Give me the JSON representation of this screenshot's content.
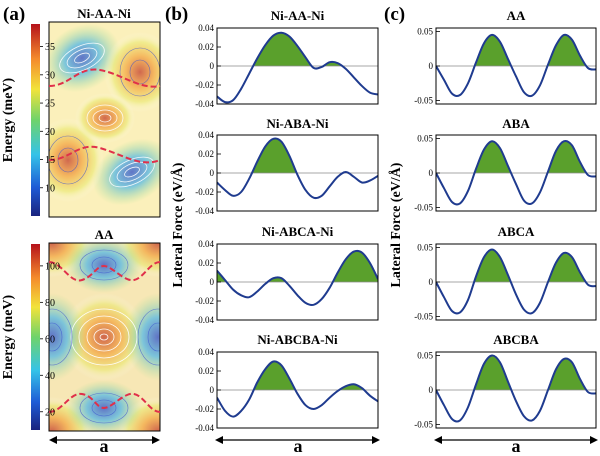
{
  "panels": {
    "a": "(a)",
    "b": "(b)",
    "c": "(c)"
  },
  "a_x_label": "a",
  "b_x_label": "a",
  "c_x_label": "a",
  "b_ylabel": "Lateral Force (eV/Å)",
  "c_ylabel": "Lateral Force (eV/Å)",
  "colors": {
    "line": "#1f3b8f",
    "fill": "#5aa02c",
    "mep": "#e0304a",
    "zero": "#8a8a8a"
  },
  "chart_data": [
    {
      "id": "a-top",
      "type": "heatmap",
      "title": "Ni-AA-Ni",
      "ylabel": "Energy (meV)",
      "ylim": [
        5,
        39
      ],
      "colorbar_ticks": [
        10,
        15,
        20,
        25,
        30,
        35
      ],
      "colormap": "jet"
    },
    {
      "id": "a-bottom",
      "type": "heatmap",
      "title": "AA",
      "ylabel": "Energy (meV)",
      "ylim": [
        10,
        112
      ],
      "colorbar_ticks": [
        20,
        40,
        60,
        80,
        100
      ],
      "colormap": "jet"
    },
    {
      "id": "b1",
      "type": "area",
      "title": "Ni-AA-Ni",
      "xlabel": "a",
      "ylabel": "Lateral Force (eV/Å)",
      "ylim": [
        -0.04,
        0.04
      ],
      "yticks": [
        "-0.04",
        "-0.02",
        "0",
        "0.02",
        "0.04"
      ],
      "x": [
        0,
        0.05,
        0.1,
        0.15,
        0.2,
        0.25,
        0.3,
        0.35,
        0.4,
        0.45,
        0.5,
        0.55,
        0.6,
        0.65,
        0.7,
        0.75,
        0.8,
        0.85,
        0.9,
        0.95,
        1
      ],
      "y": [
        -0.032,
        -0.038,
        -0.036,
        -0.024,
        -0.008,
        0.008,
        0.022,
        0.032,
        0.035,
        0.031,
        0.021,
        0.009,
        -0.002,
        -0.001,
        0.004,
        0.003,
        -0.003,
        -0.012,
        -0.021,
        -0.028,
        -0.03
      ]
    },
    {
      "id": "b2",
      "type": "area",
      "title": "Ni-ABA-Ni",
      "xlabel": "a",
      "ylabel": "Lateral Force (eV/Å)",
      "ylim": [
        -0.04,
        0.04
      ],
      "yticks": [
        "-0.04",
        "-0.02",
        "0",
        "0.02",
        "0.04"
      ],
      "x": [
        0,
        0.05,
        0.1,
        0.15,
        0.2,
        0.25,
        0.3,
        0.35,
        0.4,
        0.45,
        0.5,
        0.55,
        0.6,
        0.65,
        0.7,
        0.75,
        0.8,
        0.85,
        0.9,
        0.95,
        1
      ],
      "y": [
        -0.01,
        -0.018,
        -0.024,
        -0.02,
        -0.006,
        0.012,
        0.028,
        0.036,
        0.033,
        0.018,
        -0.002,
        -0.018,
        -0.026,
        -0.024,
        -0.014,
        -0.004,
        0.001,
        -0.004,
        -0.01,
        -0.008,
        -0.003
      ]
    },
    {
      "id": "b3",
      "type": "area",
      "title": "Ni-ABCA-Ni",
      "xlabel": "a",
      "ylabel": "Lateral Force (eV/Å)",
      "ylim": [
        -0.04,
        0.04
      ],
      "yticks": [
        "-0.04",
        "-0.02",
        "0",
        "0.02",
        "0.04"
      ],
      "x": [
        0,
        0.05,
        0.1,
        0.15,
        0.2,
        0.25,
        0.3,
        0.35,
        0.4,
        0.45,
        0.5,
        0.55,
        0.6,
        0.65,
        0.7,
        0.75,
        0.8,
        0.85,
        0.9,
        0.95,
        1
      ],
      "y": [
        0.012,
        0.002,
        -0.008,
        -0.014,
        -0.016,
        -0.01,
        -0.002,
        0.004,
        0.004,
        -0.004,
        -0.014,
        -0.022,
        -0.024,
        -0.018,
        -0.006,
        0.01,
        0.024,
        0.032,
        0.031,
        0.02,
        0.003
      ]
    },
    {
      "id": "b4",
      "type": "area",
      "title": "Ni-ABCBA-Ni",
      "xlabel": "a",
      "ylabel": "Lateral Force (eV/Å)",
      "ylim": [
        -0.04,
        0.04
      ],
      "yticks": [
        "-0.04",
        "-0.02",
        "0",
        "0.02",
        "0.04"
      ],
      "x": [
        0,
        0.05,
        0.1,
        0.15,
        0.2,
        0.25,
        0.3,
        0.35,
        0.4,
        0.45,
        0.5,
        0.55,
        0.6,
        0.65,
        0.7,
        0.75,
        0.8,
        0.85,
        0.9,
        0.95,
        1
      ],
      "y": [
        -0.008,
        -0.022,
        -0.028,
        -0.022,
        -0.01,
        0.008,
        0.022,
        0.03,
        0.026,
        0.012,
        -0.004,
        -0.016,
        -0.02,
        -0.016,
        -0.008,
        -0.001,
        0.004,
        0.006,
        0.002,
        -0.006,
        -0.012
      ]
    },
    {
      "id": "c1",
      "type": "area",
      "title": "AA",
      "xlabel": "a",
      "ylabel": "Lateral Force (eV/Å)",
      "ylim": [
        -0.055,
        0.055
      ],
      "yticks": [
        "-0.05",
        "0",
        "0.05"
      ],
      "x": [
        0,
        0.05,
        0.1,
        0.15,
        0.2,
        0.25,
        0.3,
        0.35,
        0.4,
        0.45,
        0.5,
        0.55,
        0.6,
        0.65,
        0.7,
        0.75,
        0.8,
        0.85,
        0.9,
        0.95,
        1
      ],
      "y": [
        0,
        -0.02,
        -0.04,
        -0.042,
        -0.025,
        0.005,
        0.033,
        0.045,
        0.035,
        0.01,
        -0.015,
        -0.038,
        -0.043,
        -0.028,
        0.002,
        0.03,
        0.045,
        0.038,
        0.015,
        -0.003,
        -0.005
      ]
    },
    {
      "id": "c2",
      "type": "area",
      "title": "ABA",
      "xlabel": "a",
      "ylabel": "Lateral Force (eV/Å)",
      "ylim": [
        -0.055,
        0.055
      ],
      "yticks": [
        "-0.05",
        "0",
        "0.05"
      ],
      "x": [
        0,
        0.05,
        0.1,
        0.15,
        0.2,
        0.25,
        0.3,
        0.35,
        0.4,
        0.45,
        0.5,
        0.55,
        0.6,
        0.65,
        0.7,
        0.75,
        0.8,
        0.85,
        0.9,
        0.95,
        1
      ],
      "y": [
        0,
        -0.022,
        -0.042,
        -0.044,
        -0.026,
        0.006,
        0.034,
        0.046,
        0.036,
        0.01,
        -0.016,
        -0.04,
        -0.044,
        -0.028,
        0.002,
        0.032,
        0.046,
        0.04,
        0.016,
        -0.003,
        -0.005
      ]
    },
    {
      "id": "c3",
      "type": "area",
      "title": "ABCA",
      "xlabel": "a",
      "ylabel": "Lateral Force (eV/Å)",
      "ylim": [
        -0.055,
        0.055
      ],
      "yticks": [
        "-0.05",
        "0",
        "0.05"
      ],
      "x": [
        0,
        0.05,
        0.1,
        0.15,
        0.2,
        0.25,
        0.3,
        0.35,
        0.4,
        0.45,
        0.5,
        0.55,
        0.6,
        0.65,
        0.7,
        0.75,
        0.8,
        0.85,
        0.9,
        0.95,
        1
      ],
      "y": [
        0,
        -0.022,
        -0.042,
        -0.044,
        -0.026,
        0.008,
        0.036,
        0.047,
        0.036,
        0.01,
        -0.018,
        -0.04,
        -0.045,
        -0.03,
        0,
        0.028,
        0.042,
        0.036,
        0.014,
        -0.004,
        -0.006
      ]
    },
    {
      "id": "c4",
      "type": "area",
      "title": "ABCBA",
      "xlabel": "a",
      "ylabel": "Lateral Force (eV/Å)",
      "ylim": [
        -0.055,
        0.055
      ],
      "yticks": [
        "-0.05",
        "0",
        "0.05"
      ],
      "x": [
        0,
        0.05,
        0.1,
        0.15,
        0.2,
        0.25,
        0.3,
        0.35,
        0.4,
        0.45,
        0.5,
        0.55,
        0.6,
        0.65,
        0.7,
        0.75,
        0.8,
        0.85,
        0.9,
        0.95,
        1
      ],
      "y": [
        0,
        -0.022,
        -0.042,
        -0.044,
        -0.025,
        0.008,
        0.038,
        0.05,
        0.04,
        0.012,
        -0.016,
        -0.038,
        -0.044,
        -0.03,
        0,
        0.03,
        0.045,
        0.04,
        0.016,
        -0.003,
        -0.005
      ]
    }
  ]
}
